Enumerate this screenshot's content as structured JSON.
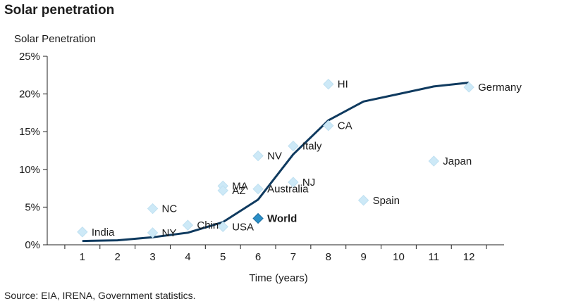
{
  "title": "Solar penetration",
  "source": "Source: EIA, IRENA, Government statistics.",
  "chart_data": {
    "type": "scatter",
    "ylabel": "Solar Penetration",
    "xlabel": "Time (years)",
    "x_ticks": [
      1,
      2,
      3,
      4,
      5,
      6,
      7,
      8,
      9,
      10,
      11,
      12
    ],
    "y_ticks": [
      0,
      5,
      10,
      15,
      20,
      25
    ],
    "y_tick_labels": [
      "0%",
      "5%",
      "10%",
      "15%",
      "20%",
      "25%"
    ],
    "xlim": [
      0,
      13
    ],
    "ylim": [
      0,
      25
    ],
    "grid": false,
    "line": {
      "x": [
        1,
        2,
        3,
        4,
        5,
        6,
        7,
        8,
        9,
        10,
        11,
        12
      ],
      "y": [
        0.5,
        0.6,
        1.0,
        1.6,
        3.0,
        6.0,
        12.0,
        16.5,
        19.0,
        20.0,
        21.0,
        21.5
      ],
      "color": "#0f3a5f"
    },
    "points": [
      {
        "label": "India",
        "x": 1,
        "y": 1.7
      },
      {
        "label": "NC",
        "x": 3,
        "y": 4.8
      },
      {
        "label": "NY",
        "x": 3,
        "y": 1.6
      },
      {
        "label": "China",
        "x": 4,
        "y": 2.6
      },
      {
        "label": "MA",
        "x": 5,
        "y": 7.8
      },
      {
        "label": "AZ",
        "x": 5,
        "y": 7.2
      },
      {
        "label": "USA",
        "x": 5,
        "y": 2.4
      },
      {
        "label": "NV",
        "x": 6,
        "y": 11.8
      },
      {
        "label": "Australia",
        "x": 6,
        "y": 7.4
      },
      {
        "label": "World",
        "x": 6,
        "y": 3.5,
        "highlight": true
      },
      {
        "label": "Italy",
        "x": 7,
        "y": 13.1
      },
      {
        "label": "NJ",
        "x": 7,
        "y": 8.3
      },
      {
        "label": "HI",
        "x": 8,
        "y": 21.3
      },
      {
        "label": "CA",
        "x": 8,
        "y": 15.8
      },
      {
        "label": "Spain",
        "x": 9,
        "y": 5.9
      },
      {
        "label": "Japan",
        "x": 11,
        "y": 11.1
      },
      {
        "label": "Germany",
        "x": 12,
        "y": 20.9
      }
    ],
    "colors": {
      "marker": "#cde9f7",
      "marker_stroke": "#bfe0f1",
      "highlight": "#2b8fc7",
      "highlight_stroke": "#1c6da0"
    }
  }
}
